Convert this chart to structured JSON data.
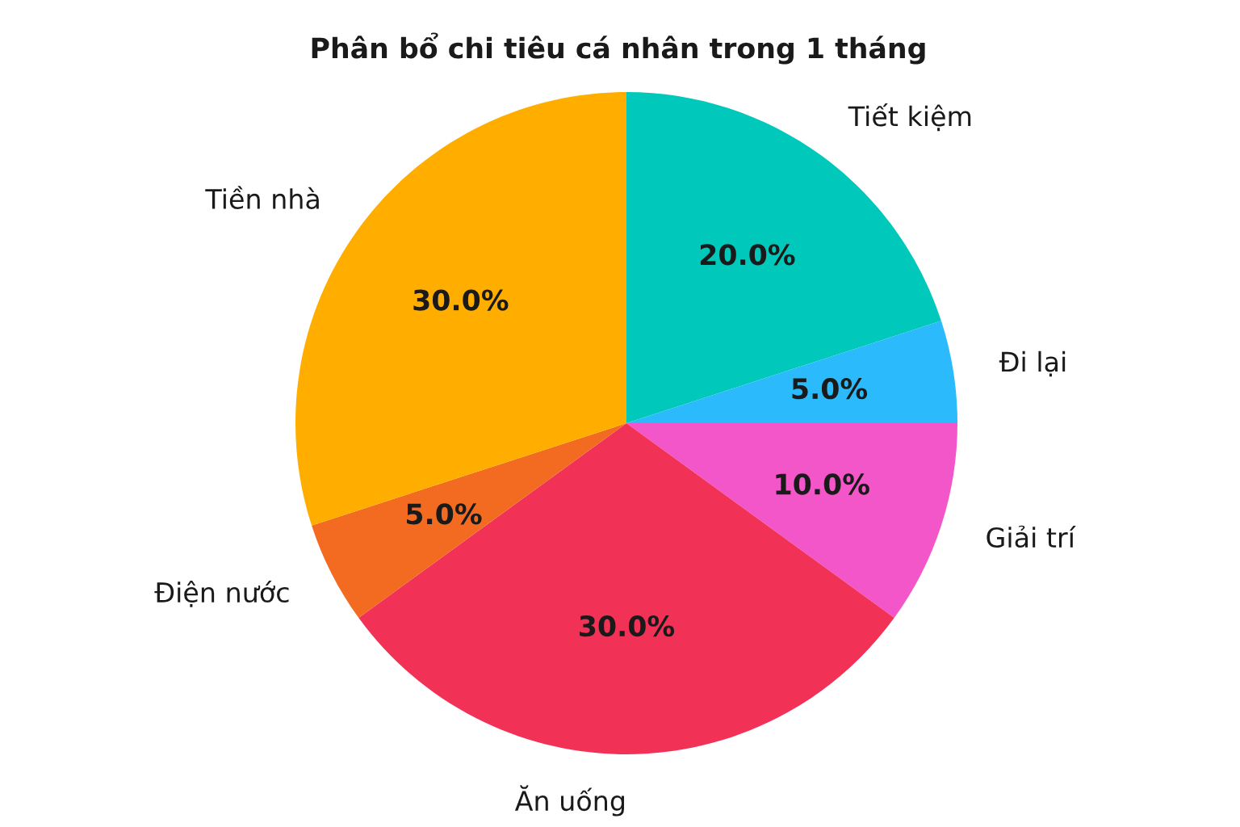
{
  "chart_data": {
    "type": "pie",
    "title": "Phân bổ chi tiêu cá nhân trong 1 tháng",
    "categories": [
      "Tiết kiệm",
      "Đi lại",
      "Giải trí",
      "Ăn uống",
      "Điện nước",
      "Tiền nhà"
    ],
    "values": [
      20,
      5,
      10,
      30,
      5,
      30
    ],
    "colors": [
      "#00c9bc",
      "#2bbafb",
      "#f356c8",
      "#f23157",
      "#f26b21",
      "#ffae00"
    ],
    "value_labels": [
      "20.0%",
      "5.0%",
      "10.0%",
      "30.0%",
      "5.0%",
      "30.0%"
    ]
  }
}
